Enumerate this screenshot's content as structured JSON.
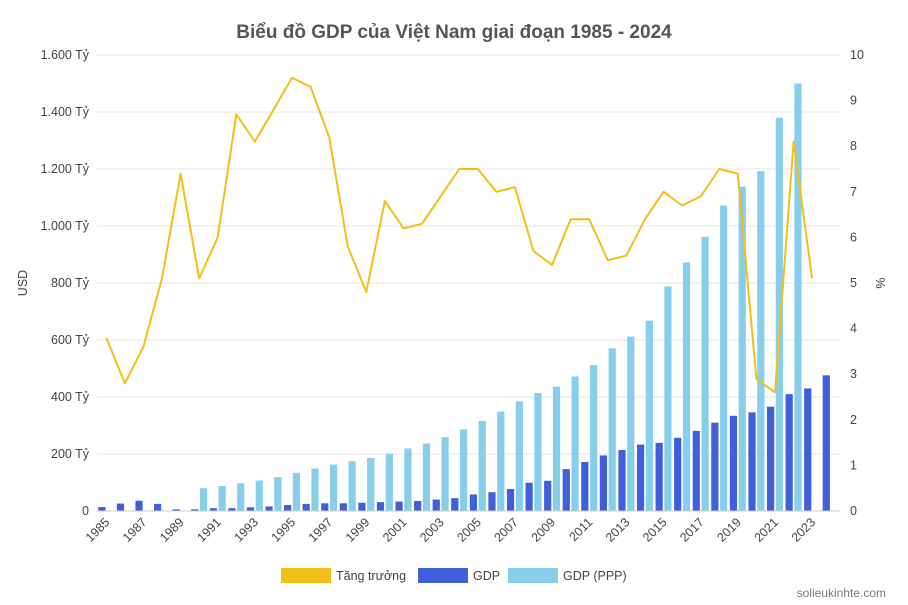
{
  "chart_data": {
    "type": "bar",
    "title": "Biểu đồ GDP của Việt Nam giai đoạn 1985 - 2024",
    "ylabel": "USD",
    "y2label": "%",
    "ylim": [
      0,
      1600
    ],
    "y2lim": [
      0,
      10
    ],
    "y_ticks": [
      "0",
      "200 Tỷ",
      "400 Tỷ",
      "600 Tỷ",
      "800 Tỷ",
      "1.000 Tỷ",
      "1.200 Tỷ",
      "1.400 Tỷ",
      "1.600 Tỷ"
    ],
    "y2_ticks": [
      "0",
      "1",
      "2",
      "3",
      "4",
      "5",
      "6",
      "7",
      "8",
      "9",
      "10"
    ],
    "x_tick_labels": [
      "1985",
      "1987",
      "1989",
      "1991",
      "1993",
      "1995",
      "1997",
      "1999",
      "2001",
      "2003",
      "2005",
      "2007",
      "2009",
      "2011",
      "2013",
      "2015",
      "2017",
      "2019",
      "2021",
      "2023"
    ],
    "grid": true,
    "legend_position": "bottom",
    "categories": [
      "1985",
      "1986",
      "1987",
      "1988",
      "1989",
      "1990",
      "1991",
      "1992",
      "1993",
      "1994",
      "1995",
      "1996",
      "1997",
      "1998",
      "1999",
      "2000",
      "2001",
      "2002",
      "2003",
      "2004",
      "2005",
      "2006",
      "2007",
      "2008",
      "2009",
      "2010",
      "2011",
      "2012",
      "2013",
      "2014",
      "2015",
      "2016",
      "2017",
      "2018",
      "2019",
      "2020",
      "2021",
      "2022",
      "2023",
      "2024"
    ],
    "series": [
      {
        "name": "Tăng trưởng",
        "kind": "line",
        "axis": "right",
        "color": "#f2bf17",
        "values": [
          3.8,
          2.8,
          3.6,
          5.1,
          7.4,
          5.1,
          6.0,
          8.7,
          8.1,
          8.8,
          9.5,
          9.3,
          8.2,
          5.8,
          4.8,
          6.8,
          6.2,
          6.3,
          6.9,
          7.5,
          7.5,
          7.0,
          7.1,
          5.7,
          5.4,
          6.4,
          6.4,
          5.5,
          5.6,
          6.4,
          7.0,
          6.7,
          6.9,
          7.5,
          7.4,
          2.9,
          2.6,
          8.1,
          5.1,
          null
        ]
      },
      {
        "name": "GDP",
        "kind": "bar",
        "axis": "left",
        "color": "#3f5fdb",
        "values": [
          14,
          26,
          36,
          25,
          6,
          6,
          10,
          10,
          13,
          16,
          21,
          25,
          27,
          27,
          29,
          31,
          33,
          35,
          40,
          45,
          58,
          66,
          77,
          99,
          106,
          147,
          172,
          195,
          214,
          233,
          239,
          257,
          281,
          310,
          334,
          346,
          366,
          410,
          430,
          476
        ]
      },
      {
        "name": "GDP (PPP)",
        "kind": "bar",
        "axis": "left",
        "color": "#87ceeb",
        "values": [
          null,
          null,
          null,
          null,
          null,
          80,
          88,
          97,
          107,
          119,
          134,
          149,
          163,
          175,
          186,
          201,
          219,
          237,
          259,
          286,
          316,
          349,
          385,
          414,
          436,
          472,
          512,
          571,
          612,
          668,
          788,
          872,
          962,
          1072,
          1138,
          1192,
          1380,
          1500,
          null,
          null
        ]
      }
    ]
  },
  "watermark": "solieukinhte.com"
}
